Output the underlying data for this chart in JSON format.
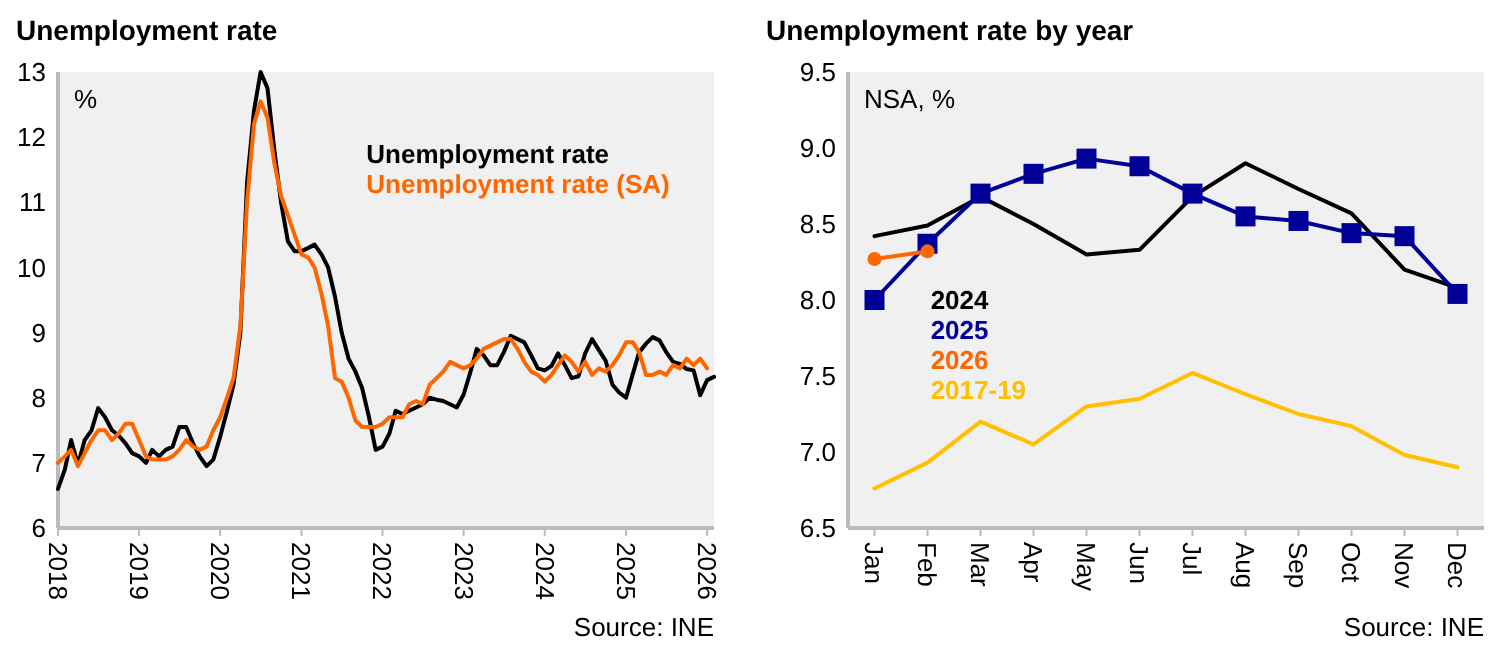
{
  "chart_data": [
    {
      "type": "line",
      "title": "Unemployment rate",
      "annotations": [
        "%",
        "Source: INE"
      ],
      "legend": "top right",
      "xlim": [
        "2018-01",
        "2026-02"
      ],
      "xticks": [
        "2018",
        "2019",
        "2020",
        "2021",
        "2022",
        "2023",
        "2024",
        "2025",
        "2026"
      ],
      "ylim": [
        6,
        13
      ],
      "yticks": [
        6,
        7,
        8,
        9,
        10,
        11,
        12,
        13
      ],
      "x": [
        "2018-01",
        "2018-02",
        "2018-03",
        "2018-04",
        "2018-05",
        "2018-06",
        "2018-07",
        "2018-08",
        "2018-09",
        "2018-10",
        "2018-11",
        "2018-12",
        "2019-01",
        "2019-02",
        "2019-03",
        "2019-04",
        "2019-05",
        "2019-06",
        "2019-07",
        "2019-08",
        "2019-09",
        "2019-10",
        "2019-11",
        "2019-12",
        "2020-01",
        "2020-02",
        "2020-03",
        "2020-04",
        "2020-05",
        "2020-06",
        "2020-07",
        "2020-08",
        "2020-09",
        "2020-10",
        "2020-11",
        "2020-12",
        "2021-01",
        "2021-02",
        "2021-03",
        "2021-04",
        "2021-05",
        "2021-06",
        "2021-07",
        "2021-08",
        "2021-09",
        "2021-10",
        "2021-11",
        "2021-12",
        "2022-01",
        "2022-02",
        "2022-03",
        "2022-04",
        "2022-05",
        "2022-06",
        "2022-07",
        "2022-08",
        "2022-09",
        "2022-10",
        "2022-11",
        "2022-12",
        "2023-01",
        "2023-02",
        "2023-03",
        "2023-04",
        "2023-05",
        "2023-06",
        "2023-07",
        "2023-08",
        "2023-09",
        "2023-10",
        "2023-11",
        "2023-12",
        "2024-01",
        "2024-02",
        "2024-03",
        "2024-04",
        "2024-05",
        "2024-06",
        "2024-07",
        "2024-08",
        "2024-09",
        "2024-10",
        "2024-11",
        "2024-12",
        "2025-01",
        "2025-02",
        "2025-03",
        "2025-04",
        "2025-05",
        "2025-06",
        "2025-07",
        "2025-08",
        "2025-09",
        "2025-10",
        "2025-11",
        "2025-12",
        "2026-01",
        "2026-02"
      ],
      "series": [
        {
          "name": "Unemployment rate",
          "color": "#000000",
          "values": [
            6.6,
            6.9,
            7.35,
            6.97,
            7.35,
            7.5,
            7.84,
            7.7,
            7.5,
            7.42,
            7.3,
            7.15,
            7.1,
            7.0,
            7.2,
            7.1,
            7.2,
            7.25,
            7.55,
            7.55,
            7.3,
            7.1,
            6.95,
            7.05,
            7.4,
            7.8,
            8.2,
            9.0,
            11.3,
            12.4,
            13.0,
            12.75,
            11.8,
            11.0,
            10.4,
            10.25,
            10.25,
            10.3,
            10.35,
            10.2,
            10.0,
            9.55,
            9.0,
            8.6,
            8.4,
            8.15,
            7.7,
            7.2,
            7.25,
            7.45,
            7.8,
            7.75,
            7.8,
            7.85,
            7.9,
            8.0,
            7.97,
            7.95,
            7.9,
            7.85,
            8.05,
            8.4,
            8.75,
            8.65,
            8.5,
            8.5,
            8.7,
            8.95,
            8.9,
            8.85,
            8.65,
            8.45,
            8.42,
            8.49,
            8.68,
            8.5,
            8.3,
            8.33,
            8.68,
            8.9,
            8.73,
            8.57,
            8.2,
            8.08,
            8.0,
            8.37,
            8.7,
            8.83,
            8.93,
            8.88,
            8.7,
            8.55,
            8.52,
            8.44,
            8.42,
            8.04,
            8.27,
            8.32
          ]
        },
        {
          "name": "Unemployment rate (SA)",
          "color": "#ff6600",
          "values": [
            7.0,
            7.1,
            7.2,
            6.95,
            7.15,
            7.35,
            7.5,
            7.5,
            7.35,
            7.45,
            7.6,
            7.6,
            7.35,
            7.1,
            7.05,
            7.05,
            7.05,
            7.1,
            7.2,
            7.35,
            7.25,
            7.2,
            7.25,
            7.5,
            7.7,
            8.0,
            8.3,
            9.1,
            11.0,
            12.2,
            12.55,
            12.3,
            11.6,
            11.1,
            10.8,
            10.5,
            10.2,
            10.15,
            10.0,
            9.6,
            9.1,
            8.3,
            8.25,
            8.0,
            7.65,
            7.55,
            7.55,
            7.55,
            7.6,
            7.7,
            7.7,
            7.7,
            7.9,
            7.95,
            7.9,
            8.2,
            8.3,
            8.4,
            8.55,
            8.5,
            8.45,
            8.5,
            8.6,
            8.75,
            8.8,
            8.85,
            8.9,
            8.9,
            8.75,
            8.55,
            8.4,
            8.35,
            8.25,
            8.35,
            8.5,
            8.65,
            8.55,
            8.4,
            8.55,
            8.35,
            8.45,
            8.4,
            8.5,
            8.65,
            8.85,
            8.85,
            8.7,
            8.35,
            8.35,
            8.4,
            8.35,
            8.5,
            8.45,
            8.6,
            8.5,
            8.6,
            8.45,
            null
          ]
        }
      ]
    },
    {
      "type": "line",
      "title": "Unemployment rate by year",
      "annotations": [
        "NSA, %",
        "Source: INE"
      ],
      "legend": "left",
      "categories": [
        "Jan",
        "Feb",
        "Mar",
        "Apr",
        "May",
        "Jun",
        "Jul",
        "Aug",
        "Sep",
        "Oct",
        "Nov",
        "Dec"
      ],
      "ylim": [
        6.5,
        9.5
      ],
      "yticks": [
        6.5,
        {
          "value": 7,
          "label": "7.0"
        },
        7.5,
        {
          "value": 8,
          "label": "8.0"
        },
        8.5,
        {
          "value": 9,
          "label": "9.0"
        },
        9.5
      ],
      "series": [
        {
          "name": "2024",
          "color": "#000000",
          "marker": "none",
          "values": [
            8.42,
            8.49,
            8.68,
            8.5,
            8.3,
            8.33,
            8.68,
            8.9,
            8.73,
            8.57,
            8.2,
            8.08
          ]
        },
        {
          "name": "2025",
          "color": "#000099",
          "marker": "square",
          "values": [
            8.0,
            8.37,
            8.7,
            8.83,
            8.93,
            8.88,
            8.7,
            8.55,
            8.52,
            8.44,
            8.42,
            8.04
          ]
        },
        {
          "name": "2026",
          "color": "#ff6600",
          "marker": "circle",
          "values": [
            8.27,
            8.32,
            null,
            null,
            null,
            null,
            null,
            null,
            null,
            null,
            null,
            null
          ]
        },
        {
          "name": "2017-19",
          "color": "#ffc000",
          "marker": "none",
          "values": [
            6.76,
            6.93,
            7.2,
            7.05,
            7.3,
            7.35,
            7.52,
            7.38,
            7.25,
            7.17,
            6.98,
            6.9
          ]
        }
      ]
    }
  ]
}
